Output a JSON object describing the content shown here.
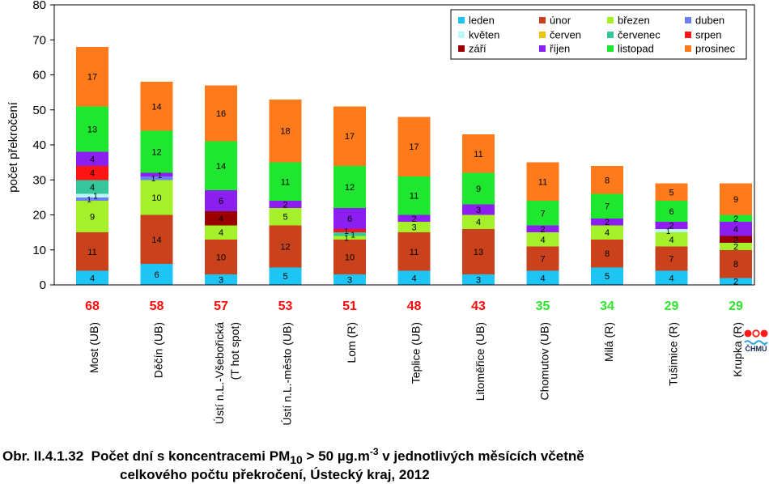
{
  "figure": {
    "caption": {
      "line1_parts": [
        "Obr. II.4.1.32  Počet dní s koncentracemi PM",
        "10",
        " > 50 µg.m",
        "-3",
        " v jednotlivých měsících včetně"
      ],
      "line2": "celkového počtu překročení, Ústecký kraj, 2012"
    },
    "logo": {
      "text": "ČHMÚ"
    }
  },
  "chart_data": {
    "type": "bar",
    "stacked": true,
    "title": "",
    "xlabel": "",
    "ylabel": "počet překročení",
    "ylim": [
      0,
      80
    ],
    "yticks": [
      0,
      10,
      20,
      30,
      40,
      50,
      60,
      70,
      80
    ],
    "grid": false,
    "legend": {
      "placement": "top-right"
    },
    "categories": [
      [
        "Most (UB)"
      ],
      [
        "Děčín (UB)"
      ],
      [
        "Ústí n.L.-Všebořická",
        "(T hot spot)"
      ],
      [
        "Ústí n.L.-město (UB)"
      ],
      [
        "Lom (R)"
      ],
      [
        "Teplice (UB)"
      ],
      [
        "Litoměřice (UB)"
      ],
      [
        "Chomutov (UB)"
      ],
      [
        "Milá (R)"
      ],
      [
        "Tušimice (R)"
      ],
      [
        "Krupka (R)"
      ]
    ],
    "series": [
      {
        "name": "leden",
        "color": "#1ec5f4",
        "values": [
          4,
          6,
          3,
          5,
          3,
          4,
          3,
          4,
          5,
          4,
          2
        ]
      },
      {
        "name": "únor",
        "color": "#c9421c",
        "values": [
          11,
          14,
          10,
          12,
          10,
          11,
          13,
          7,
          8,
          7,
          8
        ]
      },
      {
        "name": "březen",
        "color": "#a5f02a",
        "values": [
          9,
          10,
          4,
          5,
          1,
          3,
          4,
          4,
          4,
          4,
          2
        ]
      },
      {
        "name": "duben",
        "color": "#6b7ff2",
        "values": [
          1,
          1,
          0,
          0,
          0,
          0,
          0,
          0,
          0,
          0,
          0
        ]
      },
      {
        "name": "květen",
        "color": "#bdf6f6",
        "values": [
          1,
          0,
          0,
          0,
          0,
          0,
          0,
          0,
          0,
          1,
          0
        ]
      },
      {
        "name": "červen",
        "color": "#f2c30e",
        "values": [
          0,
          0,
          0,
          0,
          0,
          0,
          0,
          0,
          0,
          0,
          0
        ]
      },
      {
        "name": "červenec",
        "color": "#35c79b",
        "values": [
          4,
          0,
          0,
          0,
          1,
          0,
          0,
          0,
          0,
          0,
          0
        ]
      },
      {
        "name": "srpen",
        "color": "#ff1414",
        "values": [
          4,
          0,
          0,
          0,
          1,
          0,
          0,
          0,
          0,
          0,
          0
        ]
      },
      {
        "name": "září",
        "color": "#9a0000",
        "values": [
          0,
          0,
          4,
          0,
          0,
          0,
          0,
          0,
          0,
          0,
          2
        ]
      },
      {
        "name": "říjen",
        "color": "#8c1ff0",
        "values": [
          4,
          1,
          6,
          2,
          6,
          2,
          3,
          2,
          2,
          2,
          4
        ]
      },
      {
        "name": "listopad",
        "color": "#1fe72f",
        "values": [
          13,
          12,
          14,
          11,
          12,
          11,
          9,
          7,
          7,
          6,
          2
        ]
      },
      {
        "name": "prosinec",
        "color": "#ff7a1a",
        "values": [
          17,
          14,
          16,
          18,
          17,
          17,
          11,
          11,
          8,
          5,
          9
        ]
      }
    ],
    "totals": [
      68,
      58,
      57,
      53,
      51,
      48,
      43,
      35,
      34,
      29,
      29
    ],
    "total_colors": [
      "#ff0a0a",
      "#ff0a0a",
      "#ff0a0a",
      "#ff0a0a",
      "#ff0a0a",
      "#ff0a0a",
      "#ff0a0a",
      "#2ee52e",
      "#2ee52e",
      "#2ee52e",
      "#2ee52e"
    ]
  }
}
